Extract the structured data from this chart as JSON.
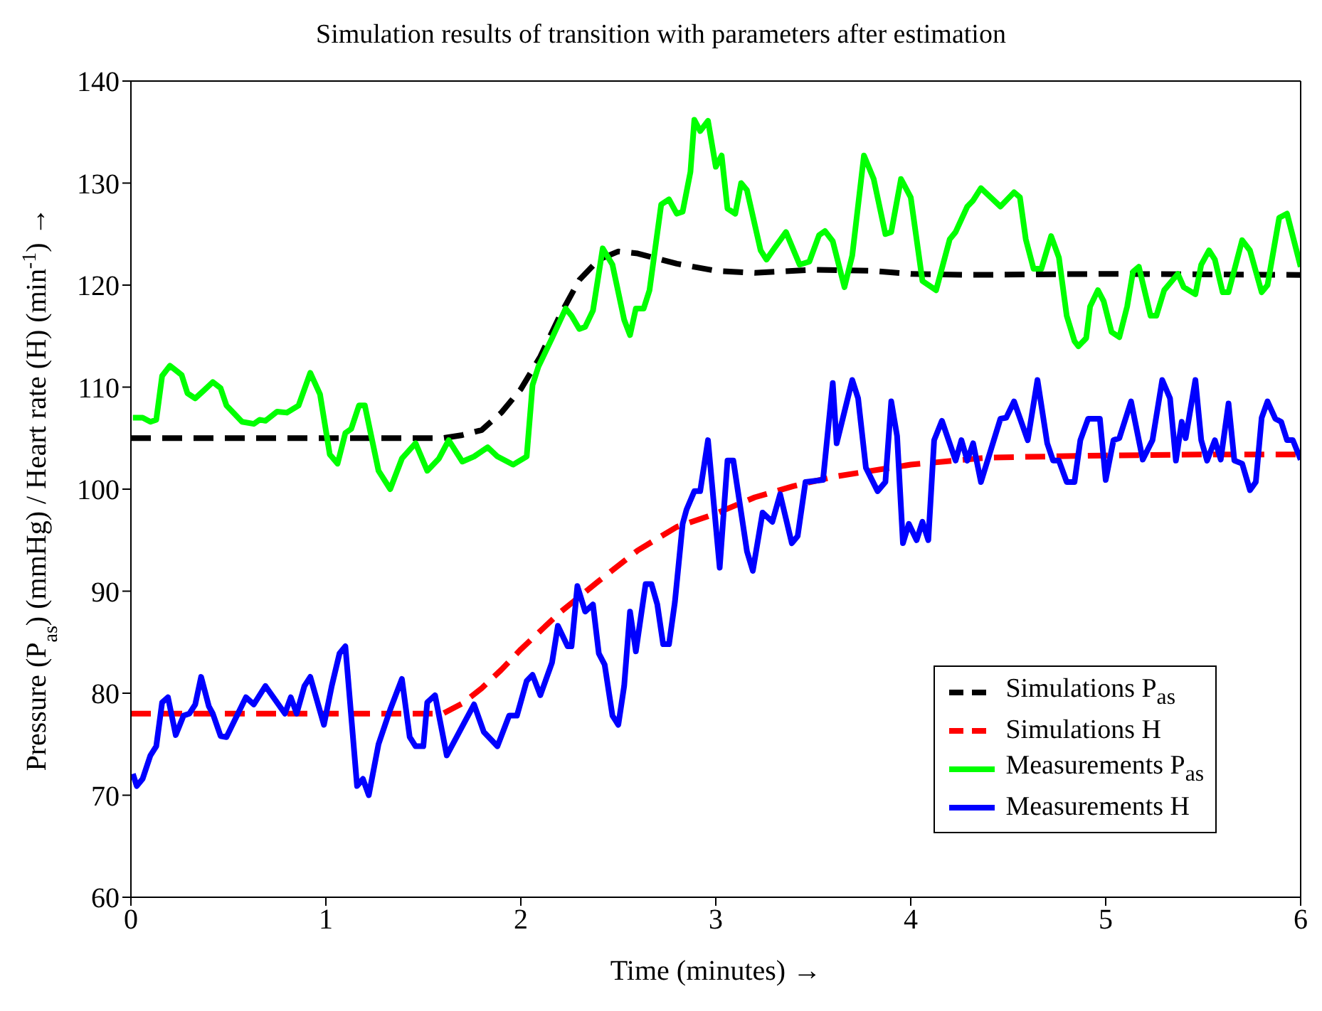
{
  "chart_data": {
    "type": "line",
    "title": "Simulation results of transition with parameters after estimation",
    "xlabel": "Time (minutes) →",
    "ylabel": "Pressure (P$_{as}$) (mmHg) / Heart rate (H) (min$^{-1}$) →",
    "xlim": [
      0,
      6
    ],
    "xticks": [
      0,
      1,
      2,
      3,
      4,
      5,
      6
    ],
    "ylim": [
      60,
      140
    ],
    "yticks": [
      60,
      70,
      80,
      90,
      100,
      110,
      120,
      130,
      140
    ],
    "legend": "bottom right",
    "marker": "none",
    "series": [
      {
        "name": "Simulations P$_{as}$",
        "color": "#000000",
        "line_style": "dashed",
        "x": [
          0,
          0.5,
          1,
          1.6,
          1.7,
          1.8,
          1.9,
          2.0,
          2.1,
          2.2,
          2.3,
          2.4,
          2.5,
          2.6,
          2.7,
          2.8,
          3.0,
          3.2,
          3.5,
          3.8,
          4.0,
          4.3,
          5.0,
          6.0
        ],
        "values": [
          105,
          105,
          105,
          105,
          105.3,
          105.8,
          107.5,
          109.8,
          113,
          117,
          120.5,
          122.5,
          123.3,
          123.1,
          122.6,
          122.1,
          121.4,
          121.2,
          121.5,
          121.4,
          121.1,
          121,
          121.1,
          121
        ]
      },
      {
        "name": "Simulations H",
        "color": "#ff0000",
        "line_style": "dashed",
        "x": [
          0,
          0.5,
          1,
          1.6,
          1.7,
          1.8,
          1.9,
          2.0,
          2.2,
          2.4,
          2.6,
          2.8,
          3.0,
          3.2,
          3.4,
          3.6,
          3.8,
          4.0,
          4.4,
          5.0,
          5.5,
          6.0
        ],
        "values": [
          78,
          78,
          78,
          78,
          79,
          80.5,
          82.3,
          84.3,
          87.9,
          91,
          94,
          96.3,
          97.6,
          99.2,
          100.3,
          101.2,
          101.8,
          102.4,
          103.1,
          103.3,
          103.4,
          103.4
        ]
      },
      {
        "name": "Measurements P$_{as}$",
        "color": "#00ff00",
        "line_style": "solid",
        "x": [
          0.01,
          0.06,
          0.1,
          0.13,
          0.16,
          0.2,
          0.26,
          0.29,
          0.33,
          0.37,
          0.42,
          0.46,
          0.49,
          0.57,
          0.63,
          0.66,
          0.69,
          0.75,
          0.8,
          0.86,
          0.92,
          0.97,
          1.02,
          1.06,
          1.1,
          1.13,
          1.17,
          1.2,
          1.27,
          1.33,
          1.39,
          1.46,
          1.52,
          1.58,
          1.63,
          1.7,
          1.76,
          1.83,
          1.88,
          1.96,
          2.03,
          2.06,
          2.09,
          2.16,
          2.23,
          2.26,
          2.3,
          2.33,
          2.37,
          2.42,
          2.47,
          2.53,
          2.56,
          2.59,
          2.63,
          2.66,
          2.72,
          2.76,
          2.8,
          2.83,
          2.87,
          2.89,
          2.92,
          2.96,
          3.0,
          3.03,
          3.06,
          3.1,
          3.13,
          3.16,
          3.23,
          3.26,
          3.3,
          3.36,
          3.43,
          3.48,
          3.53,
          3.56,
          3.6,
          3.66,
          3.7,
          3.76,
          3.81,
          3.87,
          3.9,
          3.95,
          4.0,
          4.06,
          4.13,
          4.2,
          4.23,
          4.29,
          4.32,
          4.36,
          4.46,
          4.53,
          4.56,
          4.59,
          4.63,
          4.67,
          4.72,
          4.76,
          4.8,
          4.84,
          4.86,
          4.9,
          4.92,
          4.96,
          4.99,
          5.03,
          5.07,
          5.11,
          5.14,
          5.17,
          5.23,
          5.26,
          5.3,
          5.37,
          5.4,
          5.46,
          5.49,
          5.53,
          5.56,
          5.6,
          5.63,
          5.7,
          5.74,
          5.8,
          5.83,
          5.89,
          5.93,
          6.0
        ],
        "values": [
          107.0,
          107.0,
          106.6,
          106.8,
          111.1,
          112.1,
          111.2,
          109.4,
          108.9,
          109.6,
          110.5,
          109.9,
          108.2,
          106.6,
          106.4,
          106.8,
          106.7,
          107.6,
          107.5,
          108.2,
          111.4,
          109.3,
          103.4,
          102.5,
          105.5,
          105.9,
          108.2,
          108.2,
          101.8,
          100.0,
          103.0,
          104.5,
          101.8,
          103.0,
          104.8,
          102.7,
          103.2,
          104.1,
          103.2,
          102.4,
          103.2,
          110.2,
          112.0,
          114.8,
          117.7,
          117.0,
          115.7,
          115.9,
          117.5,
          123.6,
          122.0,
          116.6,
          115.1,
          117.7,
          117.7,
          119.5,
          127.9,
          128.4,
          127.0,
          127.2,
          131.1,
          136.2,
          135.1,
          136.1,
          131.6,
          132.7,
          127.5,
          127.0,
          130.0,
          129.3,
          123.4,
          122.5,
          123.6,
          125.2,
          122.0,
          122.3,
          124.9,
          125.3,
          124.3,
          119.8,
          122.9,
          132.7,
          130.4,
          125.0,
          125.2,
          130.4,
          128.6,
          120.4,
          119.5,
          124.5,
          125.2,
          127.7,
          128.3,
          129.5,
          127.7,
          129.1,
          128.6,
          124.5,
          121.6,
          121.6,
          124.8,
          122.7,
          117.0,
          114.5,
          114.0,
          114.8,
          117.9,
          119.5,
          118.4,
          115.4,
          114.9,
          117.9,
          121.3,
          121.8,
          117.0,
          117.0,
          119.5,
          121.1,
          119.8,
          119.1,
          122.0,
          123.4,
          122.5,
          119.3,
          119.3,
          124.4,
          123.4,
          119.3,
          120.0,
          126.6,
          127.0,
          121.8
        ]
      },
      {
        "name": "Measurements H",
        "color": "#0000ff",
        "line_style": "solid",
        "x": [
          0.01,
          0.03,
          0.06,
          0.1,
          0.13,
          0.16,
          0.19,
          0.23,
          0.27,
          0.3,
          0.33,
          0.36,
          0.4,
          0.42,
          0.46,
          0.49,
          0.59,
          0.63,
          0.69,
          0.79,
          0.82,
          0.85,
          0.89,
          0.92,
          0.99,
          1.03,
          1.07,
          1.1,
          1.16,
          1.19,
          1.22,
          1.27,
          1.33,
          1.39,
          1.43,
          1.46,
          1.5,
          1.52,
          1.56,
          1.62,
          1.76,
          1.81,
          1.88,
          1.94,
          1.98,
          2.03,
          2.06,
          2.1,
          2.16,
          2.19,
          2.24,
          2.26,
          2.29,
          2.33,
          2.37,
          2.4,
          2.43,
          2.47,
          2.5,
          2.53,
          2.56,
          2.59,
          2.64,
          2.67,
          2.7,
          2.73,
          2.76,
          2.79,
          2.83,
          2.85,
          2.89,
          2.92,
          2.96,
          3.02,
          3.06,
          3.09,
          3.16,
          3.19,
          3.24,
          3.29,
          3.33,
          3.39,
          3.42,
          3.46,
          3.55,
          3.6,
          3.62,
          3.7,
          3.73,
          3.77,
          3.83,
          3.87,
          3.9,
          3.93,
          3.96,
          3.99,
          4.03,
          4.06,
          4.09,
          4.12,
          4.16,
          4.23,
          4.26,
          4.29,
          4.32,
          4.36,
          4.46,
          4.49,
          4.53,
          4.6,
          4.65,
          4.7,
          4.73,
          4.76,
          4.8,
          4.84,
          4.87,
          4.91,
          4.97,
          5.0,
          5.04,
          5.07,
          5.13,
          5.19,
          5.24,
          5.29,
          5.33,
          5.36,
          5.39,
          5.41,
          5.46,
          5.49,
          5.52,
          5.56,
          5.59,
          5.63,
          5.66,
          5.7,
          5.74,
          5.77,
          5.8,
          5.83,
          5.87,
          5.9,
          5.93,
          5.96,
          6.0
        ],
        "values": [
          72.1,
          70.9,
          71.6,
          73.9,
          74.8,
          79.1,
          79.6,
          75.9,
          77.8,
          78.0,
          78.9,
          81.6,
          78.7,
          78.0,
          75.8,
          75.7,
          79.6,
          78.9,
          80.7,
          78.0,
          79.6,
          78.0,
          80.7,
          81.6,
          76.9,
          80.7,
          83.9,
          84.6,
          70.9,
          71.6,
          70.0,
          75.0,
          78.4,
          81.4,
          75.7,
          74.8,
          74.8,
          79.1,
          79.8,
          73.9,
          78.9,
          76.2,
          74.8,
          77.8,
          77.8,
          81.2,
          81.8,
          79.8,
          83.0,
          86.6,
          84.6,
          84.6,
          90.5,
          88.0,
          88.7,
          83.9,
          82.8,
          77.8,
          76.9,
          80.7,
          88.0,
          84.1,
          90.7,
          90.7,
          88.7,
          84.8,
          84.8,
          88.9,
          96.6,
          98.0,
          99.8,
          99.8,
          104.8,
          92.3,
          102.8,
          102.8,
          93.9,
          92.0,
          97.7,
          96.8,
          99.5,
          94.7,
          95.4,
          100.7,
          100.9,
          110.4,
          104.5,
          110.7,
          108.9,
          102.1,
          99.8,
          100.7,
          108.6,
          105.2,
          94.7,
          96.6,
          95.0,
          96.8,
          95.0,
          104.8,
          106.7,
          102.8,
          104.8,
          102.8,
          104.5,
          100.7,
          106.9,
          107.0,
          108.6,
          104.8,
          110.7,
          104.5,
          102.8,
          102.8,
          100.7,
          100.7,
          104.8,
          106.9,
          106.9,
          100.9,
          104.8,
          105.0,
          108.6,
          102.9,
          104.8,
          110.7,
          108.9,
          102.8,
          106.6,
          105.0,
          110.7,
          104.8,
          102.8,
          104.8,
          102.9,
          108.4,
          102.8,
          102.5,
          99.9,
          100.7,
          107.0,
          108.6,
          106.9,
          106.6,
          104.8,
          104.8,
          102.9
        ]
      }
    ]
  }
}
